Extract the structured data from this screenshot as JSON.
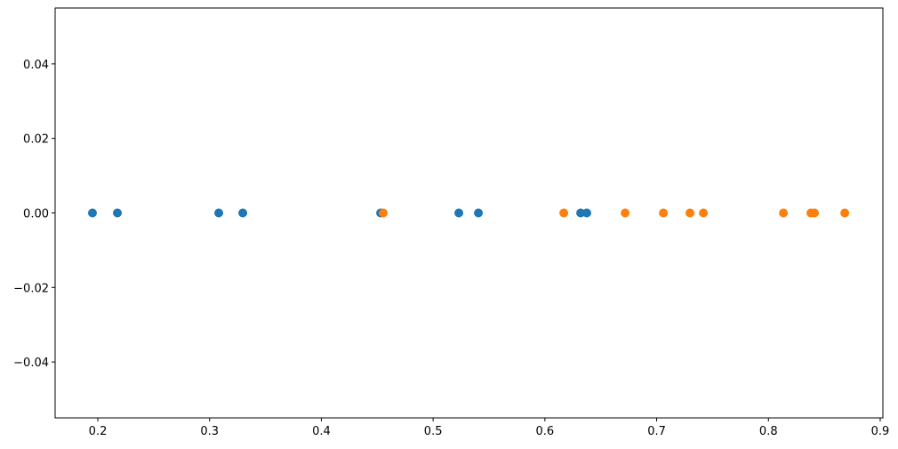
{
  "chart_data": {
    "type": "scatter",
    "series": [
      {
        "color": "#1f77b4",
        "x": [
          0.1952,
          0.2175,
          0.3082,
          0.3297,
          0.453,
          0.523,
          0.5405,
          0.632,
          0.6375
        ],
        "values": [
          0,
          0,
          0,
          0,
          0,
          0,
          0,
          0,
          0
        ]
      },
      {
        "color": "#ff7f0e",
        "x": [
          0.4554,
          0.6169,
          0.6718,
          0.706,
          0.7298,
          0.7418,
          0.8134,
          0.838,
          0.8412,
          0.8683
        ],
        "values": [
          0,
          0,
          0,
          0,
          0,
          0,
          0,
          0,
          0,
          0
        ]
      }
    ],
    "xlim": [
      0.1618,
      0.9024
    ],
    "xticks": [
      0.2,
      0.3,
      0.4,
      0.5,
      0.6,
      0.7,
      0.8,
      0.9
    ],
    "ylim": [
      -0.055,
      0.055
    ],
    "yticks": [
      {
        "value": -0.04,
        "label": "−0.04"
      },
      {
        "value": -0.02,
        "label": "−0.02"
      },
      {
        "value": 0,
        "label": "0.00"
      },
      {
        "value": 0.02,
        "label": "0.02"
      },
      0.04
    ],
    "grid": false
  }
}
